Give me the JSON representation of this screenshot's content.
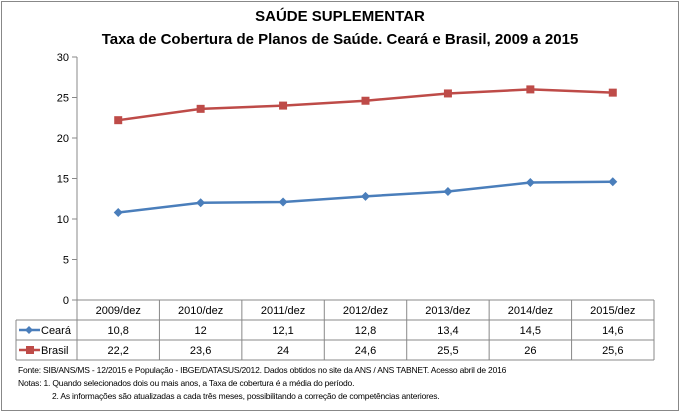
{
  "chart_data": {
    "type": "line",
    "title": "SAÚDE SUPLEMENTAR",
    "subtitle": "Taxa de Cobertura de Planos de Saúde. Ceará e Brasil, 2009 a 2015",
    "categories": [
      "2009/dez",
      "2010/dez",
      "2011/dez",
      "2012/dez",
      "2013/dez",
      "2014/dez",
      "2015/dez"
    ],
    "series": [
      {
        "name": "Ceará",
        "values": [
          10.8,
          12,
          12.1,
          12.8,
          13.4,
          14.5,
          14.6
        ],
        "labels": [
          "10,8",
          "12",
          "12,1",
          "12,8",
          "13,4",
          "14,5",
          "14,6"
        ],
        "color": "#4a7ebb",
        "marker": "diamond"
      },
      {
        "name": "Brasil",
        "values": [
          22.2,
          23.6,
          24,
          24.6,
          25.5,
          26,
          25.6
        ],
        "labels": [
          "22,2",
          "23,6",
          "24",
          "24,6",
          "25,5",
          "26",
          "25,6"
        ],
        "color": "#be4b48",
        "marker": "square"
      }
    ],
    "ylim": [
      0,
      30
    ],
    "yticks": [
      "0",
      "5",
      "10",
      "15",
      "20",
      "25",
      "30"
    ],
    "grid": false,
    "legend": "data-table"
  },
  "notes": {
    "fonte": "Fonte: SIB/ANS/MS - 12/2015 e População - IBGE/DATASUS/2012. Dados obtidos no site da ANS / ANS TABNET. Acesso abril de 2016",
    "nota1": "Notas: 1. Quando selecionados dois ou mais anos, a Taxa de cobertura é a média do período.",
    "nota2": "2. As informações são atualizadas a cada três meses, possibilitando a correção de competências anteriores."
  }
}
